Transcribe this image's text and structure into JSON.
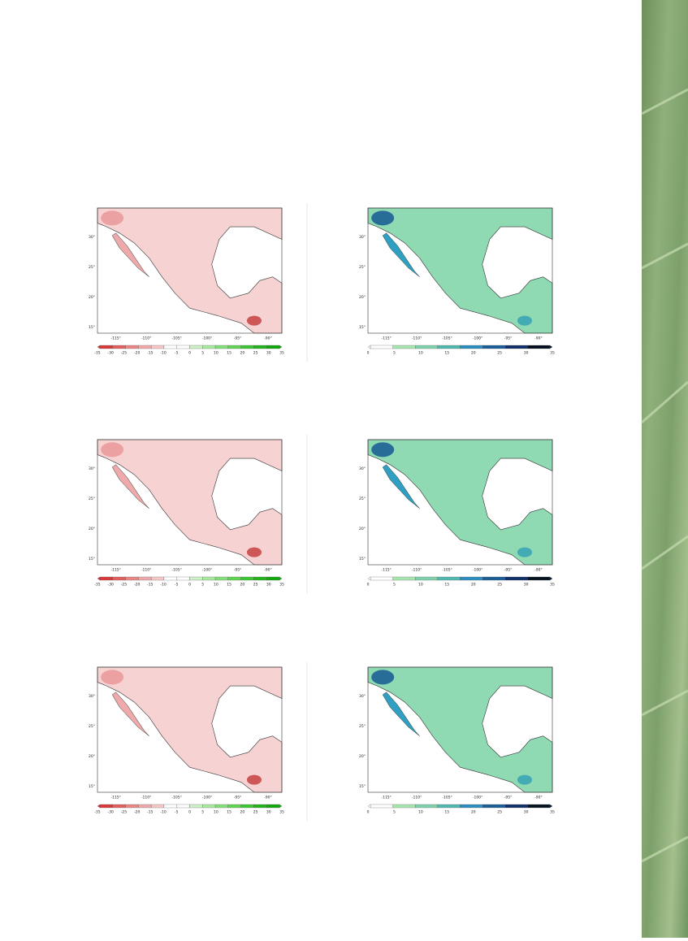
{
  "panels": [
    {
      "lat_labels": [
        "30°",
        "25°",
        "20°",
        "15°"
      ],
      "lon_labels": [
        "-115°",
        "-110°",
        "-105°",
        "-100°",
        "-95°",
        "-90°"
      ],
      "colorbar_labels": [
        "-35",
        "-30",
        "-25",
        "-20",
        "-15",
        "-10",
        "-5",
        "0",
        "5",
        "10",
        "15",
        "20",
        "25",
        "30",
        "35"
      ]
    },
    {
      "lat_labels": [
        "30°",
        "25°",
        "20°",
        "15°"
      ],
      "lon_labels": [
        "-115°",
        "-110°",
        "-105°",
        "-100°",
        "-95°",
        "-90°"
      ],
      "colorbar_labels": [
        "0",
        "5",
        "10",
        "15",
        "20",
        "25",
        "30",
        "35"
      ]
    },
    {
      "lat_labels": [
        "30°",
        "25°",
        "20°",
        "15°"
      ],
      "lon_labels": [
        "-115°",
        "-110°",
        "-105°",
        "-100°",
        "-95°",
        "-90°"
      ],
      "colorbar_labels": [
        "-35",
        "-30",
        "-25",
        "-20",
        "-15",
        "-10",
        "-5",
        "0",
        "5",
        "10",
        "15",
        "20",
        "25",
        "30",
        "35"
      ]
    },
    {
      "lat_labels": [
        "30°",
        "25°",
        "20°",
        "15°"
      ],
      "lon_labels": [
        "-115°",
        "-110°",
        "-105°",
        "-100°",
        "-95°",
        "-90°"
      ],
      "colorbar_labels": [
        "0",
        "5",
        "10",
        "15",
        "20",
        "25",
        "30",
        "35"
      ]
    },
    {
      "lat_labels": [
        "30°",
        "25°",
        "20°",
        "15°"
      ],
      "lon_labels": [
        "-115°",
        "-110°",
        "-105°",
        "-100°",
        "-95°",
        "-90°"
      ],
      "colorbar_labels": [
        "-35",
        "-30",
        "-25",
        "-20",
        "-15",
        "-10",
        "-5",
        "0",
        "5",
        "10",
        "15",
        "20",
        "25",
        "30",
        "35"
      ]
    },
    {
      "lat_labels": [
        "30°",
        "25°",
        "20°",
        "15°"
      ],
      "lon_labels": [
        "-115°",
        "-110°",
        "-105°",
        "-100°",
        "-95°",
        "-90°"
      ],
      "colorbar_labels": [
        "0",
        "5",
        "10",
        "15",
        "20",
        "25",
        "30",
        "35"
      ]
    }
  ]
}
